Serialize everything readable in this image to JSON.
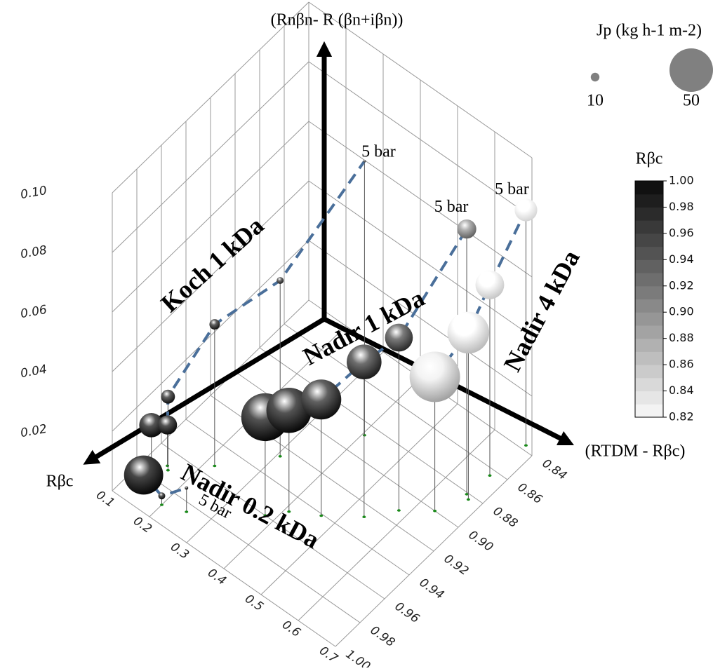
{
  "chart_data": {
    "type": "bubble3d",
    "x_label": "Rβc",
    "y_label": "(RTDM - Rβc)",
    "z_label": "(Rnβn- R (βn+iβn))",
    "xlim": [
      0.1,
      0.7
    ],
    "xticks": [
      0.1,
      0.2,
      0.3,
      0.4,
      0.5,
      0.6,
      0.7
    ],
    "ylim": [
      0.84,
      1.0
    ],
    "yticks": [
      0.84,
      0.86,
      0.88,
      {
        "value": 0.9,
        "label": "0.90"
      },
      0.92,
      0.94,
      0.96,
      0.98,
      {
        "value": 1.0,
        "label": "1.00"
      }
    ],
    "zlim": [
      0,
      0.1
    ],
    "zticks": [
      0.02,
      0.04,
      0.06,
      0.08,
      {
        "value": 0.1,
        "label": "0.10"
      }
    ],
    "size_title": "Jp (kg h-1 m-2)",
    "size_legend": [
      10,
      50
    ],
    "color_title": "Rβc",
    "clim": [
      0.82,
      1.0
    ],
    "cticks": [
      0.82,
      0.84,
      0.86,
      0.88,
      {
        "value": 0.9,
        "label": "0.90"
      },
      0.92,
      0.94,
      0.96,
      0.98,
      {
        "value": 1.0,
        "label": "1.00"
      }
    ],
    "series": [
      {
        "name": "Nadir 0.2 kDa",
        "annotation": "5 bar",
        "x": [
          0.138,
          0.2,
          0.25
        ],
        "y": [
          0.986,
          0.99,
          0.985
        ],
        "z": [
          0.003,
          0.003,
          0.008
        ],
        "size": [
          45,
          8,
          4
        ],
        "c": [
          1.0,
          0.99,
          0.99
        ]
      },
      {
        "name": "Koch 1 kDa",
        "annotation": "5 bar",
        "x": [
          0.149,
          0.146,
          0.154,
          0.22,
          0.307,
          0.405
        ],
        "y": [
          0.983,
          0.969,
          0.971,
          0.953,
          0.926,
          0.887
        ],
        "z": [
          0.0195,
          0.0137,
          0.0247,
          0.0475,
          0.059,
          0.092
        ],
        "size": [
          28,
          22,
          16,
          12,
          8,
          3
        ],
        "c": [
          0.99,
          0.99,
          0.98,
          0.98,
          0.97,
          0.96
        ]
      },
      {
        "name": "Nadir 1 kDa",
        "annotation": "5 bar",
        "x": [
          0.379,
          0.41,
          0.467,
          0.536,
          0.58,
          0.66
        ],
        "y": [
          0.96,
          0.95,
          0.941,
          0.927,
          0.912,
          0.881
        ],
        "z": [
          0.033,
          0.034,
          0.039,
          0.052,
          0.058,
          0.089
        ],
        "size": [
          55,
          52,
          46,
          40,
          32,
          22
        ],
        "c": [
          0.99,
          0.99,
          0.98,
          0.97,
          0.96,
          0.92
        ]
      },
      {
        "name": "Nadir 4 kDa",
        "annotation": "5 bar",
        "x": [
          0.637,
          0.671,
          0.666,
          0.674
        ],
        "y": [
          0.9,
          0.883,
          0.864,
          0.837
        ],
        "z": [
          0.045,
          0.056,
          0.064,
          0.079
        ],
        "size": [
          58,
          48,
          33,
          26
        ],
        "c": [
          0.87,
          0.85,
          0.84,
          0.83
        ]
      }
    ]
  }
}
